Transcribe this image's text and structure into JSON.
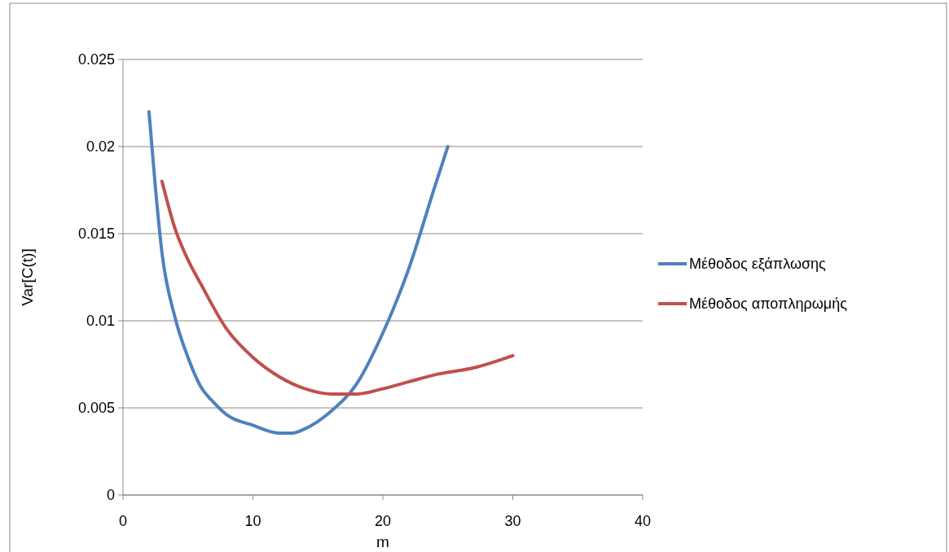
{
  "chart_data": {
    "type": "line",
    "xlabel": "m",
    "ylabel": "Var[C(t)]",
    "xlim": [
      0,
      40
    ],
    "xticks": [
      0,
      10,
      20,
      30,
      40
    ],
    "ylim": [
      0,
      0.025
    ],
    "yticks": [
      0,
      0.005,
      0.01,
      0.015,
      0.02,
      0.025
    ],
    "grid": "y",
    "legend": "right",
    "marker": "none",
    "line_style": "solid",
    "series": [
      {
        "name": "Μέθοδος εξάπλωσης",
        "color": "#4f81bd",
        "x": [
          2,
          2.5,
          3,
          4,
          5,
          6,
          7,
          8,
          10,
          12,
          13,
          14,
          16,
          18,
          20,
          22,
          24,
          25
        ],
        "values": [
          0.022,
          0.0176,
          0.0139,
          0.0102,
          0.0079,
          0.0062,
          0.0053,
          0.0046,
          0.004,
          0.00355,
          0.00355,
          0.0038,
          0.0048,
          0.0064,
          0.0093,
          0.013,
          0.0177,
          0.02
        ]
      },
      {
        "name": "Μέθοδος αποπληρωμής",
        "color": "#c0504d",
        "x": [
          3,
          4,
          5,
          6,
          8,
          10,
          12,
          14,
          16,
          18,
          20,
          22,
          24,
          27,
          30
        ],
        "values": [
          0.018,
          0.0153,
          0.0135,
          0.0121,
          0.0095,
          0.0079,
          0.0068,
          0.0061,
          0.0058,
          0.0058,
          0.0061,
          0.0065,
          0.0069,
          0.0073,
          0.008
        ]
      }
    ]
  }
}
